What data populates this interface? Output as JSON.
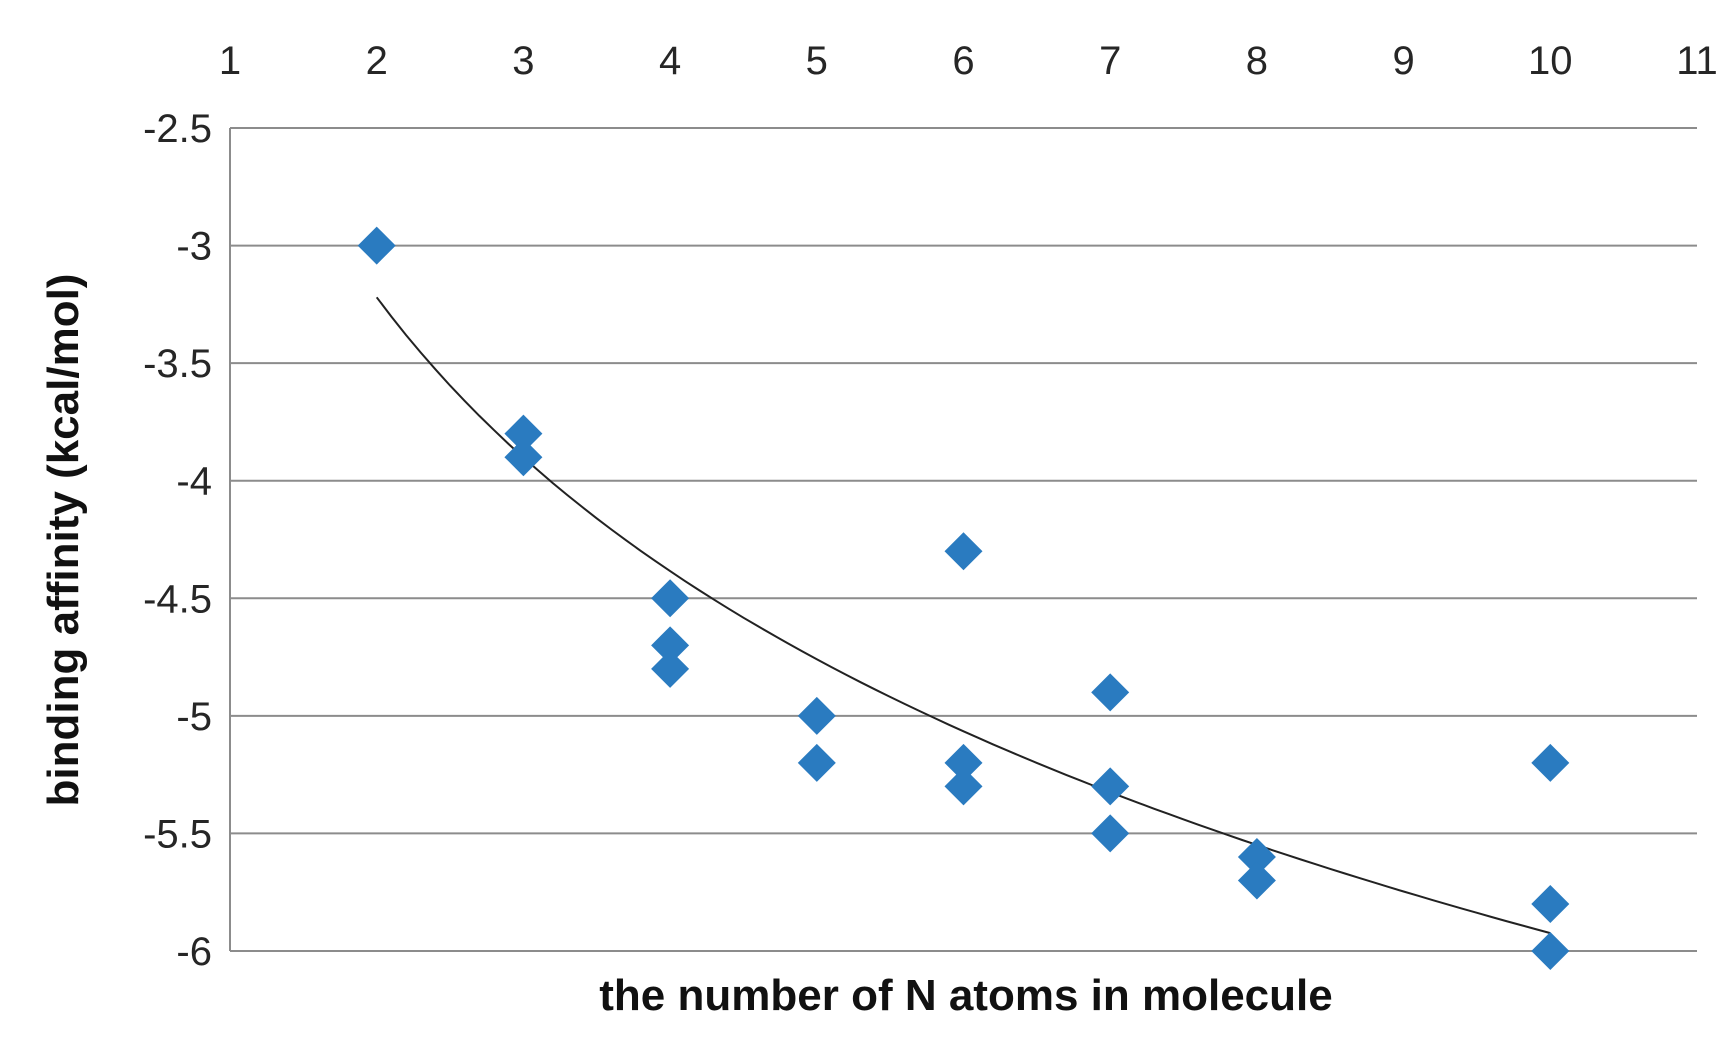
{
  "chart_data": {
    "type": "scatter",
    "xlabel": "the number of N atoms in molecule",
    "ylabel": "binding affinity (kcal/mol)",
    "x_ticks": [
      "1",
      "2",
      "3",
      "4",
      "5",
      "6",
      "7",
      "8",
      "9",
      "10",
      "11"
    ],
    "y_ticks": [
      "-2.5",
      "-3",
      "-3.5",
      "-4",
      "-4.5",
      "-5",
      "-5.5",
      "-6"
    ],
    "xlim": [
      1,
      11
    ],
    "ylim": [
      -6,
      -2.5
    ],
    "x_axis_position": "top",
    "grid": "horizontal",
    "legend": "none",
    "marker": "diamond",
    "marker_color": "#2a7bc0",
    "trendline": {
      "type": "logarithmic",
      "color": "#222222",
      "x_range": [
        2,
        10
      ],
      "a": -3.22,
      "b": -1.68
    },
    "series": [
      {
        "points": [
          [
            2,
            -3.0
          ],
          [
            3,
            -3.8
          ],
          [
            3,
            -3.9
          ],
          [
            4,
            -4.5
          ],
          [
            4,
            -4.7
          ],
          [
            4,
            -4.8
          ],
          [
            5,
            -5.0
          ],
          [
            5,
            -5.2
          ],
          [
            6,
            -4.3
          ],
          [
            6,
            -5.2
          ],
          [
            6,
            -5.3
          ],
          [
            7,
            -4.9
          ],
          [
            7,
            -5.3
          ],
          [
            7,
            -5.5
          ],
          [
            8,
            -5.6
          ],
          [
            8,
            -5.7
          ],
          [
            10,
            -5.2
          ],
          [
            10,
            -5.8
          ],
          [
            10,
            -6.0
          ]
        ]
      }
    ]
  }
}
